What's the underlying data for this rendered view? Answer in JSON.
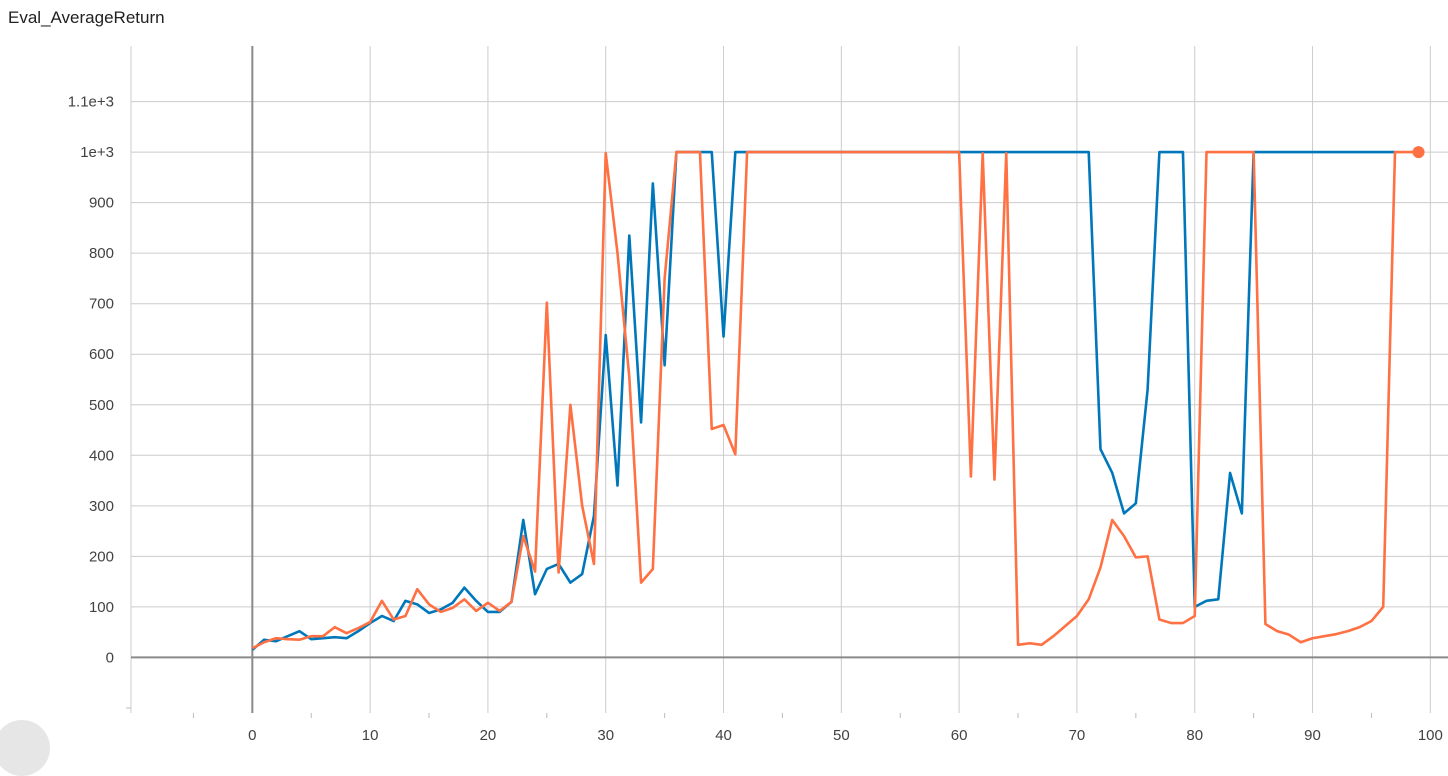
{
  "chart_data": {
    "type": "line",
    "title": "Eval_AverageReturn",
    "xlabel": "",
    "ylabel": "",
    "xlim": [
      -10.3,
      101.5
    ],
    "ylim": [
      -110,
      1210
    ],
    "grid": true,
    "xticks": [
      {
        "value": 0,
        "label": "0"
      },
      {
        "value": 10,
        "label": "10"
      },
      {
        "value": 20,
        "label": "20"
      },
      {
        "value": 30,
        "label": "30"
      },
      {
        "value": 40,
        "label": "40"
      },
      {
        "value": 50,
        "label": "50"
      },
      {
        "value": 60,
        "label": "60"
      },
      {
        "value": 70,
        "label": "70"
      },
      {
        "value": 80,
        "label": "80"
      },
      {
        "value": 90,
        "label": "90"
      },
      {
        "value": 100,
        "label": "100"
      }
    ],
    "yticks": [
      {
        "value": 0,
        "label": "0"
      },
      {
        "value": 100,
        "label": "100"
      },
      {
        "value": 200,
        "label": "200"
      },
      {
        "value": 300,
        "label": "300"
      },
      {
        "value": 400,
        "label": "400"
      },
      {
        "value": 500,
        "label": "500"
      },
      {
        "value": 600,
        "label": "600"
      },
      {
        "value": 700,
        "label": "700"
      },
      {
        "value": 800,
        "label": "800"
      },
      {
        "value": 900,
        "label": "900"
      },
      {
        "value": 1000,
        "label": "1e+3"
      },
      {
        "value": 1100,
        "label": "1.1e+3"
      }
    ],
    "series": [
      {
        "color": "#0077bb",
        "x": [
          0,
          1,
          2,
          3,
          4,
          5,
          6,
          7,
          8,
          9,
          10,
          11,
          12,
          13,
          14,
          15,
          16,
          17,
          18,
          19,
          20,
          21,
          22,
          23,
          24,
          25,
          26,
          27,
          28,
          29,
          30,
          31,
          32,
          33,
          34,
          35,
          36,
          37,
          38,
          39,
          40,
          41,
          42,
          43,
          44,
          45,
          46,
          47,
          48,
          49,
          50,
          51,
          52,
          53,
          54,
          55,
          56,
          57,
          58,
          59,
          60,
          61,
          62,
          63,
          64,
          65,
          66,
          67,
          68,
          69,
          70,
          71,
          72,
          73,
          74,
          75,
          76,
          77,
          78,
          79,
          80,
          81,
          82,
          83,
          84,
          85,
          86,
          87,
          88,
          89,
          90,
          91,
          92,
          93,
          94,
          95,
          96,
          97
        ],
        "y": [
          15,
          35,
          32,
          42,
          52,
          36,
          38,
          40,
          38,
          52,
          68,
          82,
          72,
          112,
          105,
          88,
          95,
          108,
          138,
          112,
          90,
          90,
          110,
          272,
          125,
          175,
          185,
          148,
          165,
          280,
          638,
          340,
          835,
          465,
          938,
          578,
          1000,
          1000,
          1000,
          1000,
          635,
          1000,
          1000,
          1000,
          1000,
          1000,
          1000,
          1000,
          1000,
          1000,
          1000,
          1000,
          1000,
          1000,
          1000,
          1000,
          1000,
          1000,
          1000,
          1000,
          1000,
          1000,
          1000,
          1000,
          1000,
          1000,
          1000,
          1000,
          1000,
          1000,
          1000,
          1000,
          412,
          365,
          285,
          305,
          530,
          1000,
          1000,
          1000,
          100,
          112,
          115,
          365,
          285,
          1000,
          1000,
          1000,
          1000,
          1000,
          1000,
          1000,
          1000,
          1000,
          1000,
          1000,
          1000,
          1000
        ]
      },
      {
        "color": "#ff7043",
        "x": [
          0,
          1,
          2,
          3,
          4,
          5,
          6,
          7,
          8,
          9,
          10,
          11,
          12,
          13,
          14,
          15,
          16,
          17,
          18,
          19,
          20,
          21,
          22,
          23,
          24,
          25,
          26,
          27,
          28,
          29,
          30,
          31,
          32,
          33,
          34,
          35,
          36,
          37,
          38,
          39,
          40,
          41,
          42,
          43,
          44,
          45,
          46,
          47,
          48,
          49,
          50,
          51,
          52,
          53,
          54,
          55,
          56,
          57,
          58,
          59,
          60,
          61,
          62,
          63,
          64,
          65,
          66,
          67,
          68,
          69,
          70,
          71,
          72,
          73,
          74,
          75,
          76,
          77,
          78,
          79,
          80,
          81,
          82,
          83,
          84,
          85,
          86,
          87,
          88,
          89,
          90,
          91,
          92,
          93,
          94,
          95,
          96,
          97,
          98,
          99
        ],
        "y": [
          18,
          30,
          38,
          36,
          35,
          42,
          42,
          60,
          48,
          58,
          70,
          112,
          75,
          82,
          135,
          105,
          90,
          98,
          115,
          92,
          108,
          92,
          110,
          240,
          170,
          702,
          168,
          500,
          300,
          185,
          998,
          800,
          555,
          148,
          175,
          750,
          1000,
          1000,
          1000,
          452,
          460,
          402,
          1000,
          1000,
          1000,
          1000,
          1000,
          1000,
          1000,
          1000,
          1000,
          1000,
          1000,
          1000,
          1000,
          1000,
          1000,
          1000,
          1000,
          1000,
          1000,
          358,
          998,
          352,
          998,
          25,
          28,
          25,
          42,
          62,
          82,
          115,
          178,
          272,
          240,
          198,
          200,
          75,
          68,
          68,
          82,
          1000,
          1000,
          1000,
          1000,
          1000,
          66,
          52,
          45,
          30,
          38,
          42,
          46,
          52,
          60,
          72,
          100,
          1000,
          1000,
          1000
        ]
      }
    ]
  }
}
